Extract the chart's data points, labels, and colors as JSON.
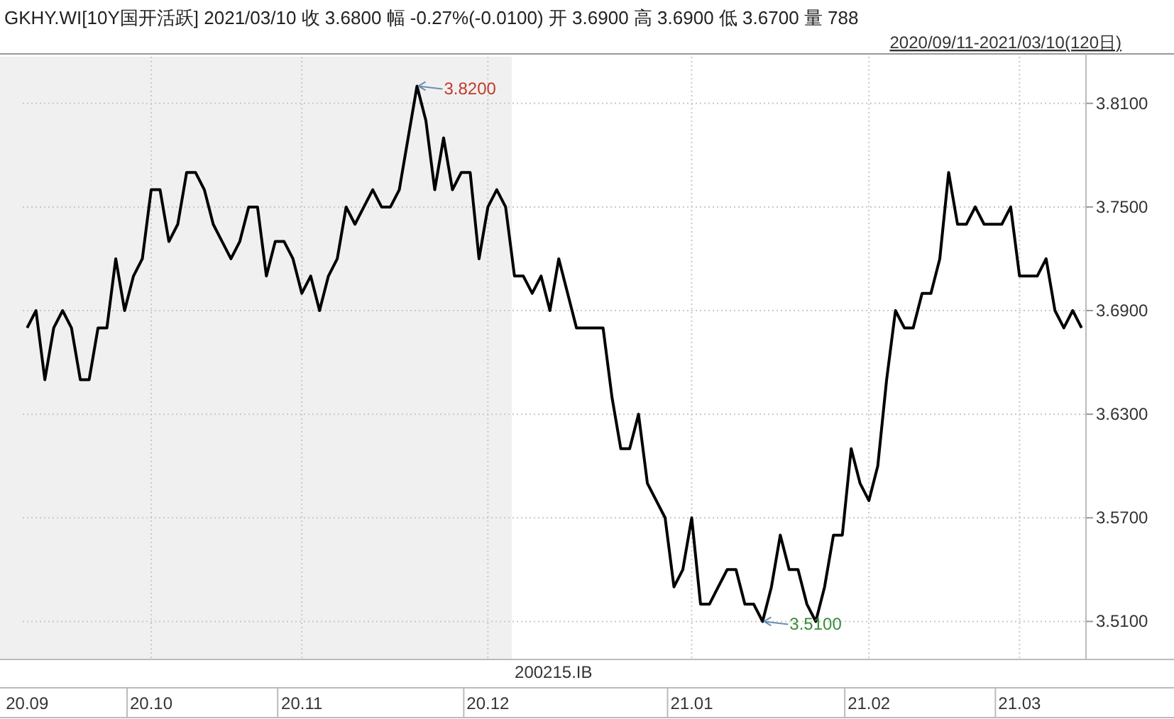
{
  "chart_data": {
    "type": "line",
    "title": "GKHY.WI[10Y国开活跃]   2021/03/10   收 3.6800   幅 -0.27%(-0.0100)   开 3.6900   高 3.6900   低 3.6700   量 788",
    "subtitle": "2020/09/11-2021/03/10(120日)",
    "categories": [
      "20.09",
      null,
      null,
      null,
      null,
      null,
      null,
      null,
      null,
      null,
      null,
      null,
      null,
      null,
      "20.10",
      null,
      null,
      null,
      null,
      null,
      null,
      null,
      null,
      null,
      null,
      null,
      null,
      null,
      null,
      null,
      null,
      "20.11",
      null,
      null,
      null,
      null,
      null,
      null,
      null,
      null,
      null,
      null,
      null,
      null,
      null,
      null,
      null,
      null,
      null,
      null,
      null,
      null,
      "20.12",
      null,
      null,
      null,
      null,
      null,
      null,
      null,
      null,
      null,
      null,
      null,
      null,
      null,
      null,
      null,
      null,
      null,
      null,
      null,
      null,
      null,
      null,
      "21.01",
      null,
      null,
      null,
      null,
      null,
      null,
      null,
      null,
      null,
      null,
      null,
      null,
      null,
      null,
      null,
      null,
      null,
      null,
      null,
      "21.02",
      null,
      null,
      null,
      null,
      null,
      null,
      null,
      null,
      null,
      null,
      null,
      null,
      null,
      null,
      null,
      null,
      "21.03",
      null,
      null,
      null,
      null,
      null,
      null,
      null
    ],
    "series": [
      {
        "color": "#000000",
        "values": [
          3.68,
          3.69,
          3.65,
          3.68,
          3.69,
          3.68,
          3.65,
          3.65,
          3.68,
          3.68,
          3.72,
          3.69,
          3.71,
          3.72,
          3.76,
          3.76,
          3.73,
          3.74,
          3.77,
          3.77,
          3.76,
          3.74,
          3.73,
          3.72,
          3.73,
          3.75,
          3.75,
          3.71,
          3.73,
          3.73,
          3.72,
          3.7,
          3.71,
          3.69,
          3.71,
          3.72,
          3.75,
          3.74,
          3.75,
          3.76,
          3.75,
          3.75,
          3.76,
          3.79,
          3.82,
          3.8,
          3.76,
          3.79,
          3.76,
          3.77,
          3.77,
          3.72,
          3.75,
          3.76,
          3.75,
          3.71,
          3.71,
          3.7,
          3.71,
          3.69,
          3.72,
          3.7,
          3.68,
          3.68,
          3.68,
          3.68,
          3.64,
          3.61,
          3.61,
          3.63,
          3.59,
          3.58,
          3.57,
          3.53,
          3.54,
          3.57,
          3.52,
          3.52,
          3.53,
          3.54,
          3.54,
          3.52,
          3.52,
          3.51,
          3.53,
          3.56,
          3.54,
          3.54,
          3.52,
          3.51,
          3.53,
          3.56,
          3.56,
          3.61,
          3.59,
          3.58,
          3.6,
          3.65,
          3.69,
          3.68,
          3.68,
          3.7,
          3.7,
          3.72,
          3.77,
          3.74,
          3.74,
          3.75,
          3.74,
          3.74,
          3.74,
          3.75,
          3.71,
          3.71,
          3.71,
          3.72,
          3.69,
          3.68,
          3.69,
          3.68
        ]
      }
    ],
    "ylim": [
      3.488,
      3.837
    ],
    "yticks": [
      {
        "value": 3.51,
        "label": "3.5100"
      },
      {
        "value": 3.57,
        "label": "3.5700"
      },
      {
        "value": 3.63,
        "label": "3.6300"
      },
      {
        "value": 3.69,
        "label": "3.6900"
      },
      {
        "value": 3.75,
        "label": "3.7500"
      },
      {
        "value": 3.81,
        "label": "3.8100"
      }
    ],
    "grid": true,
    "annotations": [
      "3.8200",
      "3.5100",
      "200215.IB"
    ]
  }
}
